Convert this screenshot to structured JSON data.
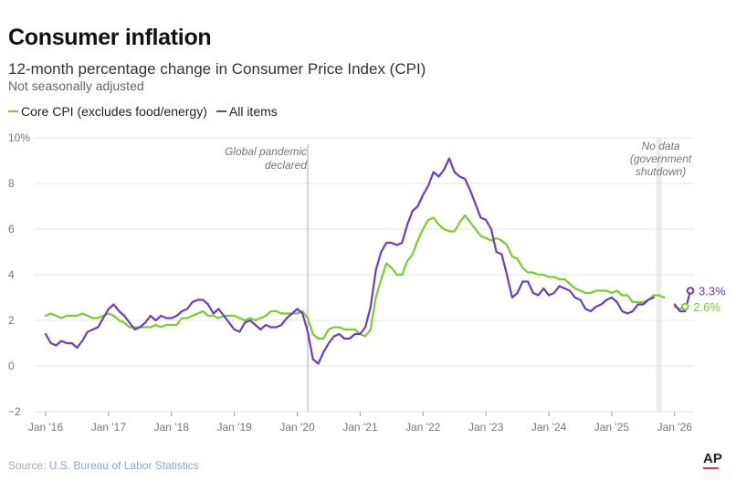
{
  "title": "Consumer inflation",
  "subtitle": "12-month percentage change in Consumer Price Index (CPI)",
  "note": "Not seasonally adjusted",
  "legend": [
    {
      "label": "Core CPI (excludes food/energy)",
      "color": "#7ccc2a"
    },
    {
      "label": "All items",
      "color": "#6a3cc8"
    }
  ],
  "source_prefix": "Source: ",
  "source_name": "U.S. Bureau of Labor Statistics",
  "logo": "AP",
  "chart_data": {
    "type": "line",
    "title": "Consumer inflation",
    "xlabel": "",
    "ylabel": "",
    "ylim": [
      -2,
      10
    ],
    "yticks": [
      -2,
      0,
      2,
      4,
      6,
      8,
      10
    ],
    "ytick_labels": [
      "−2",
      "0",
      "2",
      "4",
      "6",
      "8",
      "10%"
    ],
    "xticks": [
      {
        "month": 0,
        "label": "Jan '16"
      },
      {
        "month": 12,
        "label": "Jan '17"
      },
      {
        "month": 24,
        "label": "Jan '18"
      },
      {
        "month": 36,
        "label": "Jan '19"
      },
      {
        "month": 48,
        "label": "Jan '20"
      },
      {
        "month": 60,
        "label": "Jan '21"
      },
      {
        "month": 72,
        "label": "Jan '22"
      },
      {
        "month": 84,
        "label": "Jan '23"
      },
      {
        "month": 96,
        "label": "Jan '24"
      },
      {
        "month": 108,
        "label": "Jan '25"
      },
      {
        "month": 120,
        "label": "Jan '26"
      }
    ],
    "start": "2016-01",
    "series": [
      {
        "name": "Core CPI (excludes food/energy)",
        "color": "#7ccc2a",
        "segments": [
          {
            "start_month": 0,
            "values": [
              2.2,
              2.3,
              2.2,
              2.1,
              2.2,
              2.2,
              2.2,
              2.3,
              2.2,
              2.1,
              2.1,
              2.2,
              2.3,
              2.2,
              2.0,
              1.9,
              1.7,
              1.7,
              1.7,
              1.7,
              1.7,
              1.8,
              1.7,
              1.8,
              1.8,
              1.8,
              2.1,
              2.1,
              2.2,
              2.3,
              2.4,
              2.2,
              2.2,
              2.1,
              2.2,
              2.2,
              2.2,
              2.1,
              2.0,
              2.1,
              2.0,
              2.1,
              2.2,
              2.4,
              2.4,
              2.3,
              2.3,
              2.3,
              2.3,
              2.4,
              2.1,
              1.4,
              1.2,
              1.2,
              1.6,
              1.7,
              1.7,
              1.6,
              1.6,
              1.6,
              1.4,
              1.3,
              1.6,
              3.0,
              3.8,
              4.5,
              4.3,
              4.0,
              4.0,
              4.6,
              4.9,
              5.5,
              6.0,
              6.4,
              6.5,
              6.2,
              6.0,
              5.9,
              5.9,
              6.3,
              6.6,
              6.3,
              6.0,
              5.7,
              5.6,
              5.5,
              5.6,
              5.5,
              5.3,
              4.8,
              4.7,
              4.3,
              4.1,
              4.1,
              4.0,
              4.0,
              3.9,
              3.9,
              3.8,
              3.8,
              3.6,
              3.4,
              3.3,
              3.2,
              3.2,
              3.3,
              3.3,
              3.3,
              3.2,
              3.3,
              3.1,
              3.1,
              2.8,
              2.8,
              2.8,
              2.9,
              3.1,
              3.1,
              3.0
            ]
          },
          {
            "start_month": 120,
            "values": [
              2.6,
              2.5,
              2.6
            ]
          }
        ]
      },
      {
        "name": "All items",
        "color": "#6a3cc8",
        "segments": [
          {
            "start_month": 0,
            "values": [
              1.4,
              1.0,
              0.9,
              1.1,
              1.0,
              1.0,
              0.8,
              1.1,
              1.5,
              1.6,
              1.7,
              2.1,
              2.5,
              2.7,
              2.4,
              2.2,
              1.9,
              1.6,
              1.7,
              1.9,
              2.2,
              2.0,
              2.2,
              2.1,
              2.1,
              2.2,
              2.4,
              2.5,
              2.8,
              2.9,
              2.9,
              2.7,
              2.3,
              2.5,
              2.2,
              1.9,
              1.6,
              1.5,
              1.9,
              2.0,
              1.8,
              1.6,
              1.8,
              1.7,
              1.7,
              1.8,
              2.1,
              2.3,
              2.5,
              2.3,
              1.5,
              0.3,
              0.1,
              0.6,
              1.0,
              1.3,
              1.4,
              1.2,
              1.2,
              1.4,
              1.4,
              1.7,
              2.6,
              4.2,
              5.0,
              5.4,
              5.4,
              5.3,
              5.4,
              6.2,
              6.8,
              7.0,
              7.5,
              7.9,
              8.5,
              8.3,
              8.6,
              9.1,
              8.5,
              8.3,
              8.2,
              7.7,
              7.1,
              6.5,
              6.4,
              6.0,
              5.0,
              4.9,
              4.0,
              3.0,
              3.2,
              3.7,
              3.7,
              3.2,
              3.1,
              3.4,
              3.1,
              3.2,
              3.5,
              3.4,
              3.3,
              3.0,
              2.9,
              2.5,
              2.4,
              2.6,
              2.7,
              2.9,
              3.0,
              2.8,
              2.4,
              2.3,
              2.4,
              2.7,
              2.7,
              2.9,
              3.0
            ]
          },
          {
            "start_month": 120,
            "values": [
              2.7,
              2.4,
              2.4,
              3.3
            ]
          }
        ]
      }
    ],
    "end_labels": [
      {
        "series": "All items",
        "value": 3.3,
        "text": "3.3%"
      },
      {
        "series": "Core CPI (excludes food/energy)",
        "value": 2.6,
        "text": "2.6%"
      }
    ],
    "annotations": [
      {
        "month": 50,
        "text_lines": [
          "Global pandemic",
          "declared"
        ]
      },
      {
        "month_from": 116.5,
        "month_to": 117.5,
        "text_lines": [
          "No data",
          "(government",
          "shutdown)"
        ]
      }
    ]
  }
}
